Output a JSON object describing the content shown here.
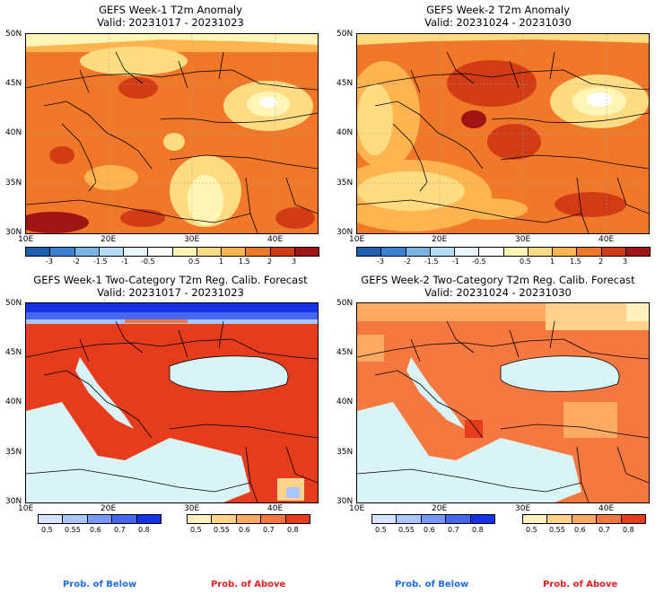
{
  "panels": [
    {
      "title": "GEFS Week-1 T2m Anomaly",
      "valid": "Valid: 20231017 - 20231023"
    },
    {
      "title": "GEFS Week-2 T2m Anomaly",
      "valid": "Valid: 20231024 - 20231030"
    },
    {
      "title": "GEFS Week-1 Two-Category T2m Reg. Calib. Forecast",
      "valid": "Valid: 20231017 - 20231023"
    },
    {
      "title": "GEFS Week-2 Two-Category T2m Reg. Calib. Forecast",
      "valid": "Valid: 20231024 - 20231030"
    }
  ],
  "lat_labels": [
    "50N",
    "45N",
    "40N",
    "35N",
    "30N"
  ],
  "lon_labels": [
    "10E",
    "20E",
    "30E",
    "40E"
  ],
  "anomaly_colorbar": {
    "labels": [
      "-3",
      "-2",
      "-1.5",
      "-1",
      "-0.5",
      "0.5",
      "1",
      "1.5",
      "2",
      "3"
    ],
    "colors": [
      "#1e5fb4",
      "#3c82d2",
      "#78b4e6",
      "#b4dcf5",
      "#e6f5ff",
      "#ffffff",
      "#fff5b4",
      "#ffdc82",
      "#ffb450",
      "#f07828",
      "#d23c14",
      "#a01414"
    ]
  },
  "prob_colorbars": {
    "below_labels": [
      "0.5",
      "0.55",
      "0.6",
      "0.7",
      "0.8"
    ],
    "below_colors": [
      "#d6e4ff",
      "#aac6ff",
      "#7898ff",
      "#4668f0",
      "#1432e6"
    ],
    "above_labels": [
      "0.5",
      "0.55",
      "0.6",
      "0.7",
      "0.8"
    ],
    "above_colors": [
      "#fff0be",
      "#ffd28c",
      "#ffaa64",
      "#f57841",
      "#e63c1e"
    ]
  },
  "legend": {
    "below": "Prob. of Below",
    "above": "Prob. of Above"
  },
  "colors": {
    "below_text": "#1e6ee6",
    "above_text": "#e61e1e",
    "sea": "#d9f4f6"
  }
}
